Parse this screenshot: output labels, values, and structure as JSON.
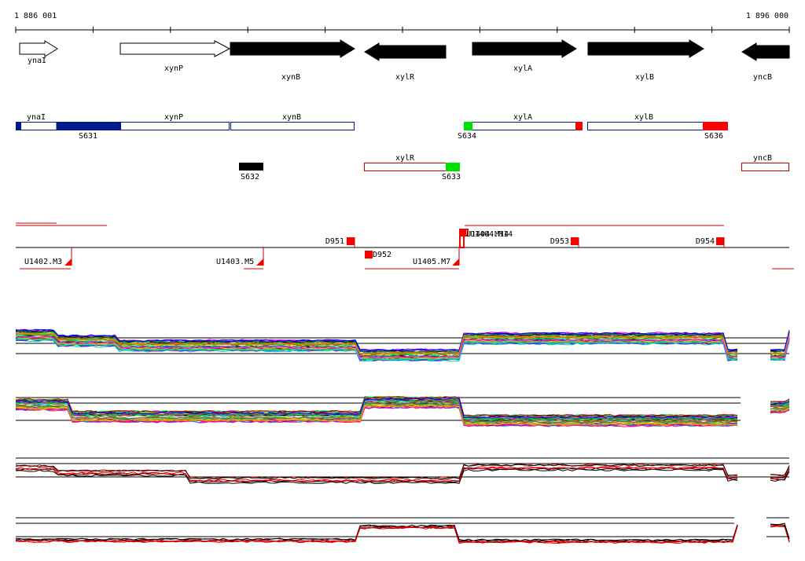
{
  "ruler": {
    "start_label": "1 886 001",
    "end_label": "1 896 000"
  },
  "genes": [
    {
      "id": "gene-ynai",
      "label": "ynaI",
      "strand": "+",
      "filled": false
    },
    {
      "id": "gene-xynp",
      "label": "xynP",
      "strand": "+",
      "filled": false
    },
    {
      "id": "gene-xynb",
      "label": "xynB",
      "strand": "+",
      "filled": true
    },
    {
      "id": "gene-xylr",
      "label": "xylR",
      "strand": "-",
      "filled": true
    },
    {
      "id": "gene-xyla",
      "label": "xylA",
      "strand": "+",
      "filled": true
    },
    {
      "id": "gene-xylb",
      "label": "xylB",
      "strand": "+",
      "filled": true
    },
    {
      "id": "gene-yncb",
      "label": "yncB",
      "strand": "-",
      "filled": true
    }
  ],
  "transcripts": {
    "forward": [
      {
        "label": "ynaI"
      },
      {
        "label": "xynP"
      },
      {
        "label": "xynB"
      },
      {
        "label": "xylA"
      },
      {
        "label": "xylB"
      }
    ],
    "reverse": [
      {
        "label": "xylR"
      },
      {
        "label": "yncB"
      }
    ]
  },
  "segments": [
    {
      "label": "S631",
      "color": "#001a8c"
    },
    {
      "label": "S632",
      "color": "#000000"
    },
    {
      "label": "S633",
      "color": "#00e000"
    },
    {
      "label": "S634",
      "color": "#00e000"
    },
    {
      "label": "S636",
      "color": "#ff0000"
    }
  ],
  "markers": {
    "downshifts": [
      {
        "label": "D951"
      },
      {
        "label": "D952"
      },
      {
        "label": "D953"
      },
      {
        "label": "D954"
      }
    ],
    "upshifts": [
      {
        "label": "U1402.M3"
      },
      {
        "label": "U1403.M5"
      },
      {
        "label": "U1405.M7"
      },
      {
        "label": "U1404.M14"
      }
    ]
  },
  "colors": {
    "forward": "#001a8c",
    "reverse": "#cc0000",
    "marker": "#ff0000",
    "gene": "#000000"
  },
  "tracks": [
    {
      "id": "track-1",
      "kind": "multicolor profiles"
    },
    {
      "id": "track-2",
      "kind": "multicolor profiles"
    },
    {
      "id": "track-3",
      "kind": "black and red profiles"
    },
    {
      "id": "track-4",
      "kind": "black and red profiles"
    }
  ]
}
